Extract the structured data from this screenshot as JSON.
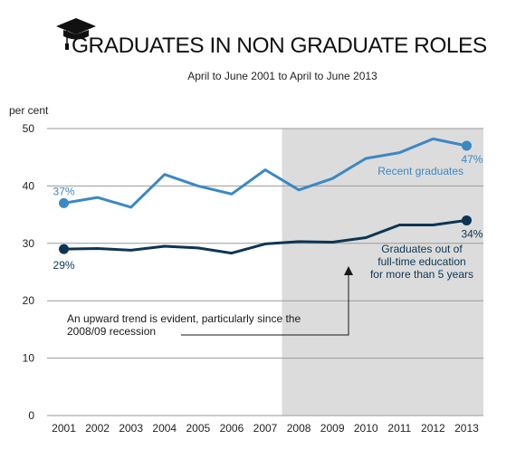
{
  "chart_data": {
    "type": "line",
    "title": "GRADUATES IN NON GRADUATE ROLES",
    "subtitle": "April to June 2001 to April to June 2013",
    "ylabel": "per cent",
    "xlabel": "",
    "ylim": [
      0,
      50
    ],
    "yticks": [
      0,
      10,
      20,
      30,
      40,
      50
    ],
    "x": [
      2001,
      2002,
      2003,
      2004,
      2005,
      2006,
      2007,
      2008,
      2009,
      2010,
      2011,
      2012,
      2013
    ],
    "grid": true,
    "shaded_region": {
      "from": 2008,
      "to": 2013
    },
    "series": [
      {
        "name": "Recent graduates",
        "color": "#3b88c3",
        "values": [
          37,
          38,
          36.3,
          42,
          40,
          38.6,
          42.8,
          39.3,
          41.3,
          44.8,
          45.8,
          48.2,
          47
        ],
        "start_label": "37%",
        "end_label": "47%"
      },
      {
        "name": "Graduates out of full-time education for more than 5 years",
        "name_lines": [
          "Graduates out of",
          "full-time education",
          "for more than 5 years"
        ],
        "color": "#0d3553",
        "values": [
          29,
          29.1,
          28.8,
          29.5,
          29.2,
          28.3,
          29.9,
          30.3,
          30.2,
          31,
          33.2,
          33.2,
          34
        ],
        "start_label": "29%",
        "end_label": "34%"
      }
    ],
    "annotation": {
      "lines": [
        "An upward trend is evident, particularly since the",
        "2008/09 recession"
      ]
    },
    "icon": "graduation-cap-icon"
  }
}
